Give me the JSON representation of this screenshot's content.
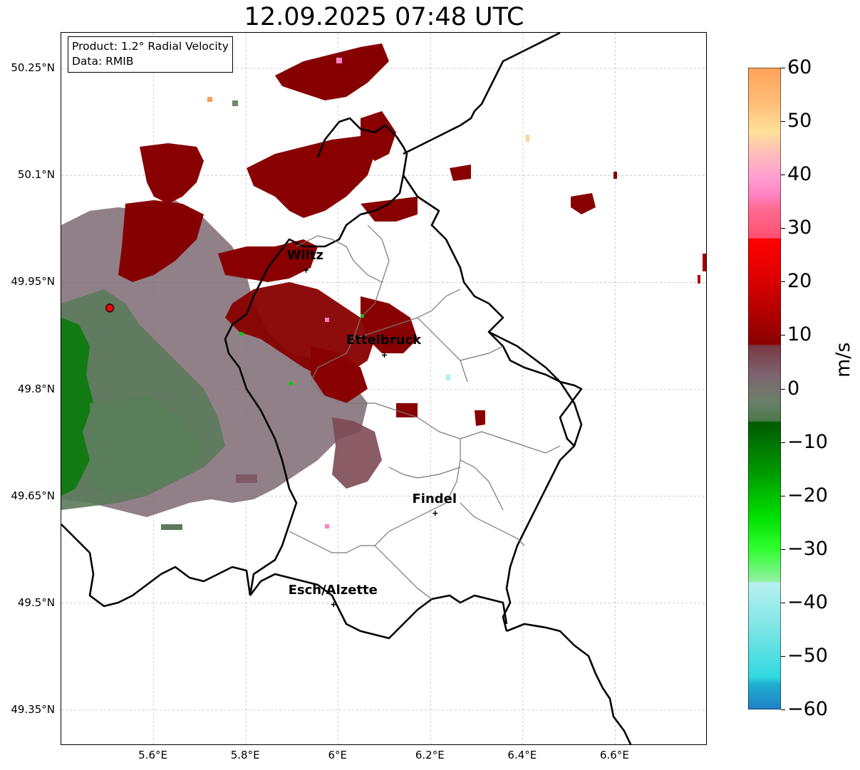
{
  "title": "12.09.2025 07:48 UTC",
  "product_box": {
    "line1": "Product: 1.2° Radial Velocity",
    "line2": "Data: RMIB"
  },
  "map": {
    "lon_range": [
      5.4,
      6.8
    ],
    "lat_range": [
      49.3,
      50.3
    ],
    "lat_ticks": [
      {
        "value": 50.25,
        "label": "50.25°N"
      },
      {
        "value": 50.1,
        "label": "50.1°N"
      },
      {
        "value": 49.95,
        "label": "49.95°N"
      },
      {
        "value": 49.8,
        "label": "49.8°N"
      },
      {
        "value": 49.65,
        "label": "49.65°N"
      },
      {
        "value": 49.5,
        "label": "49.5°N"
      },
      {
        "value": 49.35,
        "label": "49.35°N"
      }
    ],
    "lon_ticks": [
      {
        "value": 5.6,
        "label": "5.6°E"
      },
      {
        "value": 5.8,
        "label": "5.8°E"
      },
      {
        "value": 6.0,
        "label": "6°E"
      },
      {
        "value": 6.2,
        "label": "6.2°E"
      },
      {
        "value": 6.4,
        "label": "6.4°E"
      },
      {
        "value": 6.6,
        "label": "6.6°E"
      }
    ],
    "grid": true,
    "radar_site": {
      "lon": 5.505,
      "lat": 49.914
    },
    "cities": [
      {
        "name": "Wiltz",
        "lon": 5.93,
        "lat": 49.967
      },
      {
        "name": "Ettelbruck",
        "lon": 6.1,
        "lat": 49.848
      },
      {
        "name": "Findel",
        "lon": 6.21,
        "lat": 49.626
      },
      {
        "name": "Esch/Alzette",
        "lon": 5.99,
        "lat": 49.498
      }
    ]
  },
  "colorbar": {
    "unit": "m/s",
    "range": [
      -60,
      60
    ],
    "ticks": [
      {
        "value": 60,
        "label": "60"
      },
      {
        "value": 50,
        "label": "50"
      },
      {
        "value": 40,
        "label": "40"
      },
      {
        "value": 30,
        "label": "30"
      },
      {
        "value": 20,
        "label": "20"
      },
      {
        "value": 10,
        "label": "10"
      },
      {
        "value": 0,
        "label": "0"
      },
      {
        "value": -10,
        "label": "−10"
      },
      {
        "value": -20,
        "label": "−20"
      },
      {
        "value": -30,
        "label": "−30"
      },
      {
        "value": -40,
        "label": "−40"
      },
      {
        "value": -50,
        "label": "−50"
      },
      {
        "value": -60,
        "label": "−60"
      }
    ],
    "colors": {
      "velocity_pos_strong": "#8b0000",
      "velocity_pos_mid": "#e10000",
      "velocity_pos_weak": "#7a5a63",
      "velocity_zero": "#7d7d7d",
      "velocity_neg_weak": "#5e7d5e",
      "velocity_neg_mid": "#007200",
      "velocity_neg_strong": "#00dd00"
    }
  }
}
